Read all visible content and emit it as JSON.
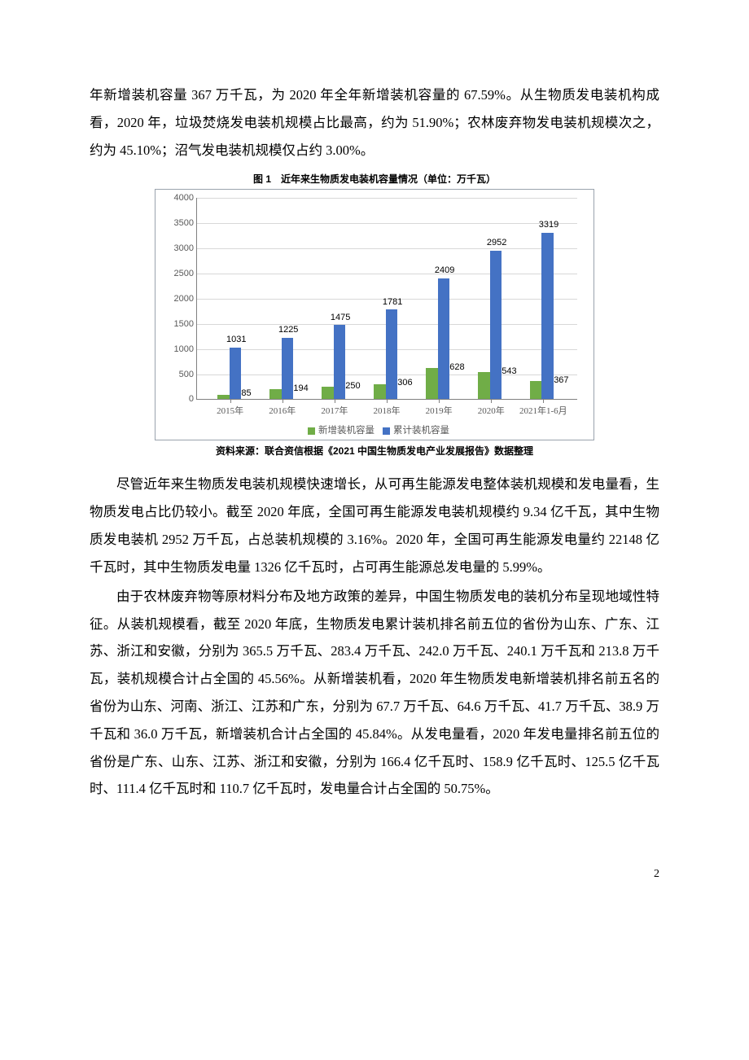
{
  "paragraphs": {
    "p1": "年新增装机容量 367 万千瓦，为 2020 年全年新增装机容量的 67.59%。从生物质发电装机构成看，2020 年，垃圾焚烧发电装机规模占比最高，约为 51.90%；农林废弃物发电装机规模次之，约为 45.10%；沼气发电装机规模仅占约 3.00%。",
    "p2": "尽管近年来生物质发电装机规模快速增长，从可再生能源发电整体装机规模和发电量看，生物质发电占比仍较小。截至 2020 年底，全国可再生能源发电装机规模约 9.34 亿千瓦，其中生物质发电装机 2952 万千瓦，占总装机规模的 3.16%。2020 年，全国可再生能源发电量约 22148 亿千瓦时，其中生物质发电量 1326 亿千瓦时，占可再生能源总发电量的 5.99%。",
    "p3": "由于农林废弃物等原材料分布及地方政策的差异，中国生物质发电的装机分布呈现地域性特征。从装机规模看，截至 2020 年底，生物质发电累计装机排名前五位的省份为山东、广东、江苏、浙江和安徽，分别为 365.5 万千瓦、283.4 万千瓦、242.0 万千瓦、240.1 万千瓦和 213.8 万千瓦，装机规模合计占全国的 45.56%。从新增装机看，2020 年生物质发电新增装机排名前五名的省份为山东、河南、浙江、江苏和广东，分别为 67.7 万千瓦、64.6 万千瓦、41.7 万千瓦、38.9 万千瓦和 36.0 万千瓦，新增装机合计占全国的 45.84%。从发电量看，2020 年发电量排名前五位的省份是广东、山东、江苏、浙江和安徽，分别为 166.4 亿千瓦时、158.9 亿千瓦时、125.5 亿千瓦时、111.4 亿千瓦时和 110.7 亿千瓦时，发电量合计占全国的 50.75%。"
  },
  "chart": {
    "title": "图 1　近年来生物质发电装机容量情况（单位：万千瓦）",
    "source": "资料来源：联合资信根据《2021 中国生物质发电产业发展报告》数据整理",
    "type": "bar",
    "categories": [
      "2015年",
      "2016年",
      "2017年",
      "2018年",
      "2019年",
      "2020年",
      "2021年1-6月"
    ],
    "series": [
      {
        "name": "新增装机容量",
        "color": "#70ad47",
        "values": [
          85,
          194,
          250,
          306,
          628,
          543,
          367
        ]
      },
      {
        "name": "累计装机容量",
        "color": "#4472c4",
        "values": [
          1031,
          1225,
          1475,
          1781,
          2409,
          2952,
          3319
        ]
      }
    ],
    "ylim": [
      0,
      4000
    ],
    "ytick_step": 500,
    "yticks": [
      0,
      500,
      1000,
      1500,
      2000,
      2500,
      3000,
      3500,
      4000
    ],
    "background_color": "#ffffff",
    "grid_color": "#d8d8d8",
    "border_color": "#9aa3ad",
    "label_fontsize": 11,
    "title_fontsize": 12,
    "bar_width": 0.23
  },
  "page_number": "2"
}
